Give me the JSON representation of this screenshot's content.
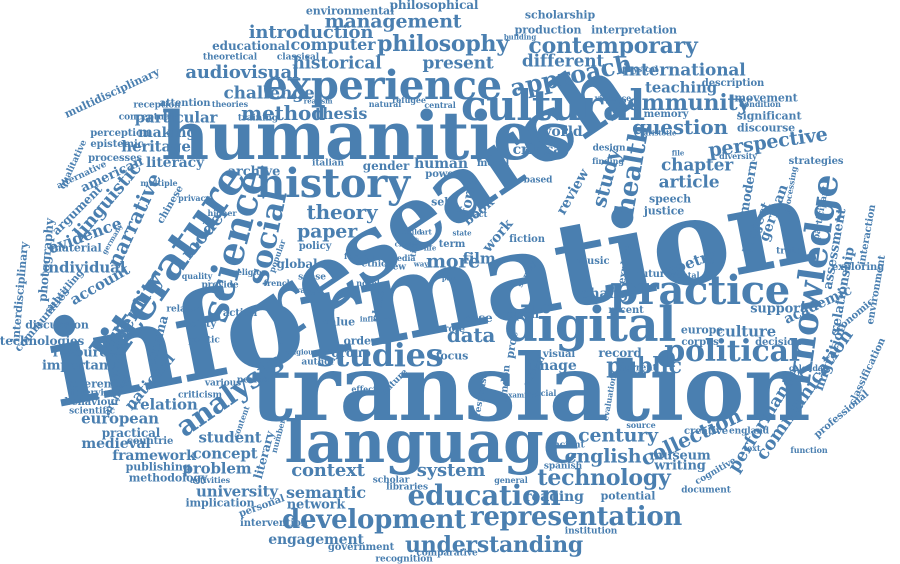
{
  "color": "#4a7fb0",
  "words": [
    "information",
    "translation",
    "research",
    "humanities",
    "language",
    "digital",
    "cultural",
    "history",
    "literature",
    "experience",
    "knowledge",
    "practice",
    "science",
    "political",
    "studies",
    "social",
    "education",
    "development",
    "representation",
    "analysis",
    "understanding",
    "technology",
    "community",
    "philosophy",
    "contemporary",
    "management",
    "introduction",
    "approach",
    "method",
    "public",
    "health",
    "perspective",
    "question",
    "communication",
    "performance",
    "collection",
    "century",
    "english",
    "system",
    "context",
    "semantic",
    "university",
    "problem",
    "concept",
    "framework",
    "student",
    "european",
    "relation",
    "national",
    "important",
    "resource",
    "individual",
    "account",
    "evidence",
    "narrative",
    "linguistic",
    "identity",
    "model",
    "theory",
    "paper",
    "data",
    "more",
    "chapter",
    "article",
    "study",
    "culture",
    "support",
    "academic",
    "project",
    "german",
    "modern",
    "assessment",
    "relationship",
    "migration",
    "international",
    "teaching",
    "different",
    "present",
    "historical",
    "audiovisual",
    "challenge",
    "particular",
    "making",
    "heritage",
    "literacy",
    "american",
    "archive",
    "gender",
    "human",
    "critical",
    "world",
    "review",
    "thesis",
    "computer",
    "educational",
    "environmental",
    "philosophical",
    "scholarship",
    "production",
    "interpretation",
    "multidisciplinary",
    "qualitative",
    "argument",
    "interdisciplinary",
    "photography",
    "communities",
    "subtitling",
    "discussion",
    "technologies",
    "behaviour",
    "interview",
    "reference",
    "medieval",
    "practical",
    "countrie",
    "publishing",
    "methodology",
    "activities",
    "implication",
    "personal",
    "network",
    "engagement",
    "government",
    "recognition",
    "intervention",
    "comparative",
    "institution",
    "writing",
    "museum",
    "creative",
    "source",
    "cognitive",
    "document",
    "england",
    "function",
    "environment",
    "professional",
    "classification",
    "interaction",
    "exploring",
    "economic",
    "calendar",
    "decision",
    "corpus",
    "europe",
    "recent",
    "visual",
    "image",
    "record",
    "london",
    "ethical",
    "current",
    "special",
    "focus",
    "case",
    "open",
    "role",
    "group",
    "order",
    "film",
    "work",
    "book",
    "form",
    "self",
    "term",
    "global",
    "policy",
    "author",
    "nature",
    "value",
    "action",
    "society",
    "related",
    "material",
    "woman",
    "cinema",
    "archival",
    "various",
    "period",
    "criticism",
    "content",
    "number",
    "literary",
    "reading",
    "potential",
    "general",
    "scholar",
    "libraries",
    "spanish",
    "ancient",
    "evaluation",
    "change",
    "music",
    "poetry",
    "future",
    "mental",
    "explore",
    "justice",
    "speech",
    "memory",
    "discourse",
    "movement",
    "description",
    "significant",
    "condition",
    "violence",
    "physical",
    "building",
    "classical",
    "theoretical",
    "training",
    "realism",
    "natural",
    "refugee",
    "central",
    "reception",
    "conceptual",
    "attention",
    "perception",
    "epistemic",
    "processes",
    "alternative",
    "theories",
    "multiple",
    "privacy",
    "higher",
    "chinese",
    "italian",
    "moral",
    "power",
    "based",
    "design",
    "finding",
    "aristotle",
    "diversity",
    "strategies",
    "processing",
    "participant",
    "fiction",
    "response",
    "effect",
    "impact",
    "provide",
    "quality",
    "french",
    "religion",
    "sense",
    "range",
    "ethic",
    "novel",
    "popular",
    "foreign",
    "media",
    "crisis",
    "child",
    "time",
    "art",
    "life",
    "state",
    "view",
    "place",
    "way",
    "past",
    "proc",
    "text",
    "file",
    "truth",
    "politic",
    "religious",
    "germany",
    "influence",
    "examine",
    "survey",
    "scientific",
    "transformation",
    "country",
    "portrait",
    "interview"
  ]
}
